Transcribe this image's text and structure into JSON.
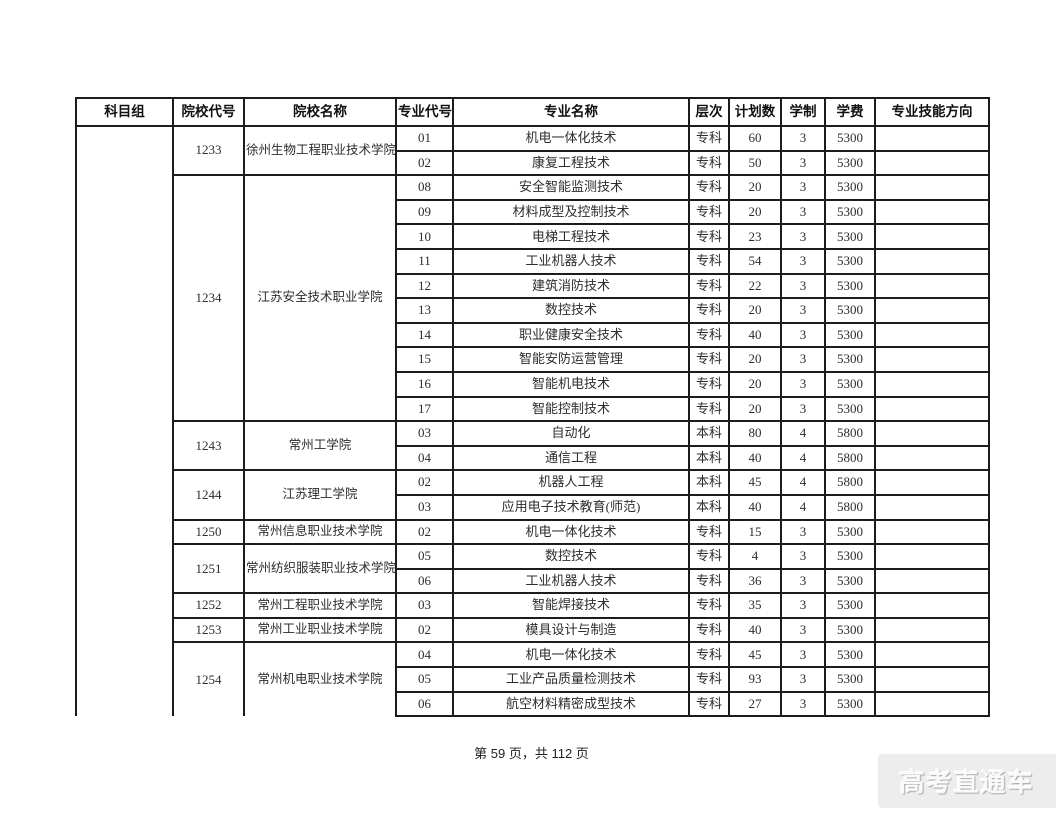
{
  "document": {
    "footer": {
      "page_label": "第 59 页，共 112 页"
    },
    "watermark": "高考直通车"
  },
  "table": {
    "headers": [
      "科目组",
      "院校代号",
      "院校名称",
      "专业代号",
      "专业名称",
      "层次",
      "计划数",
      "学制",
      "学费",
      "专业技能方向"
    ],
    "subject_group_value": "",
    "colleges": [
      {
        "code": "1233",
        "name": "徐州生物工程职业技术学院",
        "majors": [
          {
            "code": "01",
            "name": "机电一体化技术",
            "level": "专科",
            "plan": "60",
            "duration": "3",
            "tuition": "5300",
            "skill_direction": ""
          },
          {
            "code": "02",
            "name": "康复工程技术",
            "level": "专科",
            "plan": "50",
            "duration": "3",
            "tuition": "5300",
            "skill_direction": ""
          }
        ]
      },
      {
        "code": "1234",
        "name": "江苏安全技术职业学院",
        "majors": [
          {
            "code": "08",
            "name": "安全智能监测技术",
            "level": "专科",
            "plan": "20",
            "duration": "3",
            "tuition": "5300",
            "skill_direction": ""
          },
          {
            "code": "09",
            "name": "材料成型及控制技术",
            "level": "专科",
            "plan": "20",
            "duration": "3",
            "tuition": "5300",
            "skill_direction": ""
          },
          {
            "code": "10",
            "name": "电梯工程技术",
            "level": "专科",
            "plan": "23",
            "duration": "3",
            "tuition": "5300",
            "skill_direction": ""
          },
          {
            "code": "11",
            "name": "工业机器人技术",
            "level": "专科",
            "plan": "54",
            "duration": "3",
            "tuition": "5300",
            "skill_direction": ""
          },
          {
            "code": "12",
            "name": "建筑消防技术",
            "level": "专科",
            "plan": "22",
            "duration": "3",
            "tuition": "5300",
            "skill_direction": ""
          },
          {
            "code": "13",
            "name": "数控技术",
            "level": "专科",
            "plan": "20",
            "duration": "3",
            "tuition": "5300",
            "skill_direction": ""
          },
          {
            "code": "14",
            "name": "职业健康安全技术",
            "level": "专科",
            "plan": "40",
            "duration": "3",
            "tuition": "5300",
            "skill_direction": ""
          },
          {
            "code": "15",
            "name": "智能安防运营管理",
            "level": "专科",
            "plan": "20",
            "duration": "3",
            "tuition": "5300",
            "skill_direction": ""
          },
          {
            "code": "16",
            "name": "智能机电技术",
            "level": "专科",
            "plan": "20",
            "duration": "3",
            "tuition": "5300",
            "skill_direction": ""
          },
          {
            "code": "17",
            "name": "智能控制技术",
            "level": "专科",
            "plan": "20",
            "duration": "3",
            "tuition": "5300",
            "skill_direction": ""
          }
        ]
      },
      {
        "code": "1243",
        "name": "常州工学院",
        "majors": [
          {
            "code": "03",
            "name": "自动化",
            "level": "本科",
            "plan": "80",
            "duration": "4",
            "tuition": "5800",
            "skill_direction": ""
          },
          {
            "code": "04",
            "name": "通信工程",
            "level": "本科",
            "plan": "40",
            "duration": "4",
            "tuition": "5800",
            "skill_direction": ""
          }
        ]
      },
      {
        "code": "1244",
        "name": "江苏理工学院",
        "majors": [
          {
            "code": "02",
            "name": "机器人工程",
            "level": "本科",
            "plan": "45",
            "duration": "4",
            "tuition": "5800",
            "skill_direction": ""
          },
          {
            "code": "03",
            "name": "应用电子技术教育(师范)",
            "level": "本科",
            "plan": "40",
            "duration": "4",
            "tuition": "5800",
            "skill_direction": ""
          }
        ]
      },
      {
        "code": "1250",
        "name": "常州信息职业技术学院",
        "majors": [
          {
            "code": "02",
            "name": "机电一体化技术",
            "level": "专科",
            "plan": "15",
            "duration": "3",
            "tuition": "5300",
            "skill_direction": ""
          }
        ]
      },
      {
        "code": "1251",
        "name": "常州纺织服装职业技术学院",
        "majors": [
          {
            "code": "05",
            "name": "数控技术",
            "level": "专科",
            "plan": "4",
            "duration": "3",
            "tuition": "5300",
            "skill_direction": ""
          },
          {
            "code": "06",
            "name": "工业机器人技术",
            "level": "专科",
            "plan": "36",
            "duration": "3",
            "tuition": "5300",
            "skill_direction": ""
          }
        ]
      },
      {
        "code": "1252",
        "name": "常州工程职业技术学院",
        "majors": [
          {
            "code": "03",
            "name": "智能焊接技术",
            "level": "专科",
            "plan": "35",
            "duration": "3",
            "tuition": "5300",
            "skill_direction": ""
          }
        ]
      },
      {
        "code": "1253",
        "name": "常州工业职业技术学院",
        "majors": [
          {
            "code": "02",
            "name": "模具设计与制造",
            "level": "专科",
            "plan": "40",
            "duration": "3",
            "tuition": "5300",
            "skill_direction": ""
          }
        ]
      },
      {
        "code": "1254",
        "name": "常州机电职业技术学院",
        "majors": [
          {
            "code": "04",
            "name": "机电一体化技术",
            "level": "专科",
            "plan": "45",
            "duration": "3",
            "tuition": "5300",
            "skill_direction": ""
          },
          {
            "code": "05",
            "name": "工业产品质量检测技术",
            "level": "专科",
            "plan": "93",
            "duration": "3",
            "tuition": "5300",
            "skill_direction": ""
          },
          {
            "code": "06",
            "name": "航空材料精密成型技术",
            "level": "专科",
            "plan": "27",
            "duration": "3",
            "tuition": "5300",
            "skill_direction": ""
          }
        ]
      }
    ]
  }
}
